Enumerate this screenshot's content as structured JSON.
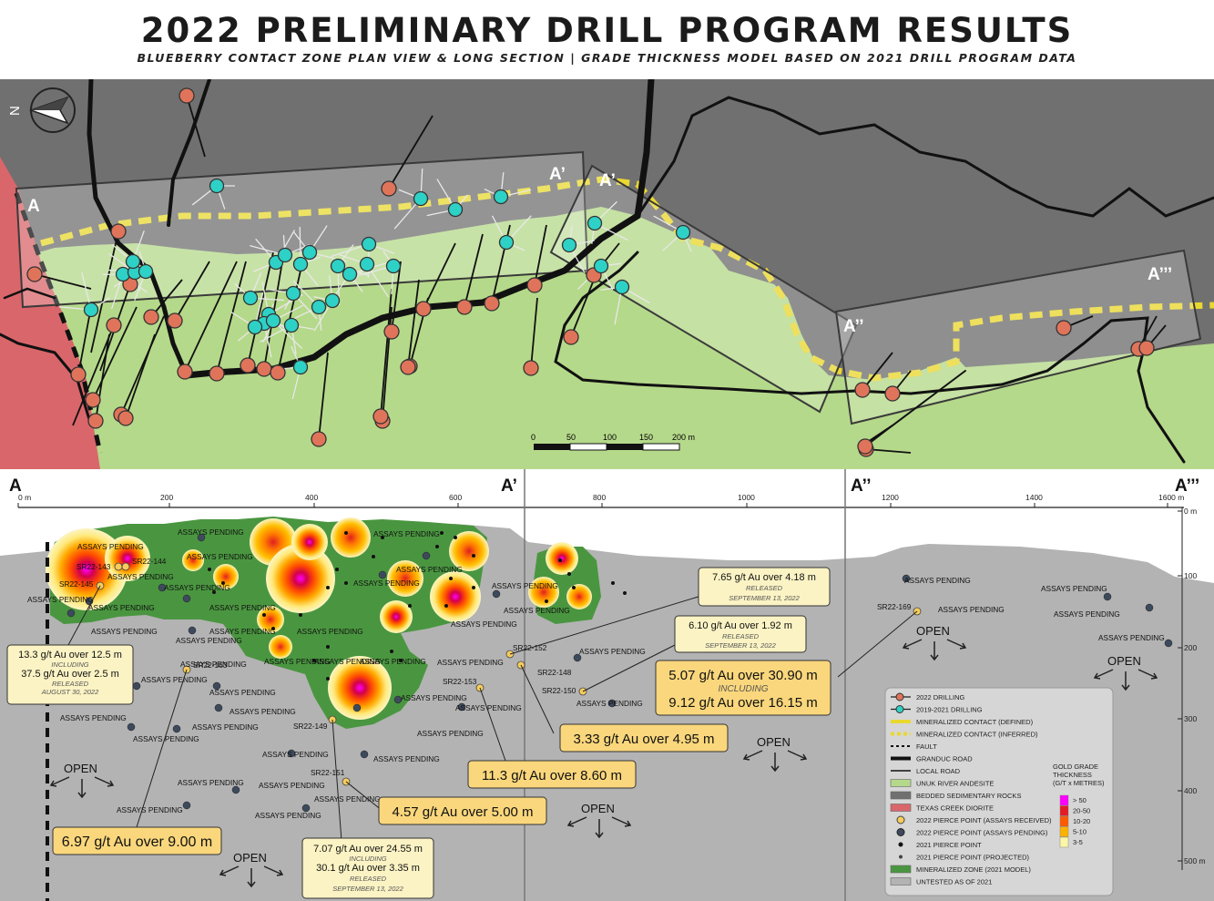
{
  "header": {
    "title": "2022 PRELIMINARY DRILL PROGRAM RESULTS",
    "subtitle": "BLUEBERRY CONTACT ZONE PLAN VIEW & LONG SECTION | GRADE THICKNESS MODEL BASED ON 2021 DRILL PROGRAM DATA"
  },
  "plan_view": {
    "compass_label": "N",
    "section_labels": {
      "a": "A",
      "a1": "A’",
      "a1b": "A’",
      "a2": "A’’",
      "a3": "A’’’"
    },
    "scale_bar": {
      "ticks": [
        "0",
        "50",
        "100",
        "150",
        "200 m"
      ]
    }
  },
  "long_section": {
    "section_labels": {
      "a": "A",
      "a1": "A’",
      "a2": "A’’",
      "a3": "A’’’"
    },
    "distance_ticks": [
      "0 m",
      "200",
      "400",
      "600",
      "800",
      "1000",
      "1200",
      "1400",
      "1600 m"
    ],
    "depth_ticks": [
      "0 m",
      "100",
      "200",
      "300",
      "400",
      "500 m"
    ],
    "pending_label": "ASSAYS PENDING",
    "open_label": "OPEN",
    "holes": [
      "SR22-143",
      "SR22-144",
      "SR22-145",
      "SR22-163",
      "SR22-149",
      "SR22-151",
      "SR22-152",
      "SR22-148",
      "SR22-153",
      "SR22-150",
      "SR22-169"
    ],
    "callouts": {
      "c1": {
        "main": "13.3 g/t Au over 12.5 m",
        "inc": "INCLUDING",
        "main2": "37.5 g/t Au over 2.5 m",
        "rel": "RELEASED",
        "date": "AUGUST 30, 2022"
      },
      "c2": {
        "main": "6.97 g/t Au over 9.00 m"
      },
      "c3": {
        "main": "7.07 g/t Au over 24.55 m",
        "inc": "INCLUDING",
        "main2": "30.1 g/t Au over 3.35 m",
        "rel": "RELEASED",
        "date": "SEPTEMBER 13, 2022"
      },
      "c4": {
        "main": "4.57 g/t Au over 5.00 m"
      },
      "c5": {
        "main": "11.3 g/t Au over 8.60 m"
      },
      "c6": {
        "main": "3.33 g/t Au over 4.95 m"
      },
      "c7": {
        "main": "7.65 g/t Au over 4.18 m",
        "rel": "RELEASED",
        "date": "SEPTEMBER 13, 2022"
      },
      "c8": {
        "main": "6.10 g/t Au over 1.92 m",
        "rel": "RELEASED",
        "date": "SEPTEMBER 13, 2022"
      },
      "c9": {
        "main": "5.07 g/t Au over 30.90 m",
        "inc": "INCLUDING",
        "main2": "9.12 g/t Au over 16.15 m"
      }
    }
  },
  "legend": {
    "items": [
      "2022 DRILLING",
      "2019-2021 DRILLING",
      "MINERALIZED CONTACT (DEFINED)",
      "MINERALIZED CONTACT (INFERRED)",
      "FAULT",
      "GRANDUC ROAD",
      "LOCAL ROAD",
      "UNUK RIVER ANDESITE",
      "BEDDED SEDIMENTARY ROCKS",
      "TEXAS CREEK DIORITE",
      "2022 PIERCE POINT (ASSAYS RECEIVED)",
      "2022 PIERCE POINT (ASSAYS PENDING)",
      "2021 PIERCE POINT",
      "2021 PIERCE POINT (PROJECTED)",
      "MINERALIZED ZONE (2021 MODEL)",
      "UNTESTED AS OF 2021"
    ],
    "grade_title": [
      "GOLD GRADE",
      "THICKNESS",
      "(G/T x METRES)"
    ],
    "grade_classes": [
      "> 50",
      "20-50",
      "10-20",
      "5-10",
      "3-5"
    ]
  },
  "colors": {
    "andesite": "#b5d98a",
    "sedimentary": "#707070",
    "diorite": "#d9666b",
    "drill_2022": "#e0745a",
    "drill_2019": "#2ed1c6",
    "contact": "#e9d830",
    "mineral_zone": "#4a9640",
    "untested": "#b3b3b3",
    "callout": "#fad77c",
    "callout_soft": "#fbf3c4"
  }
}
